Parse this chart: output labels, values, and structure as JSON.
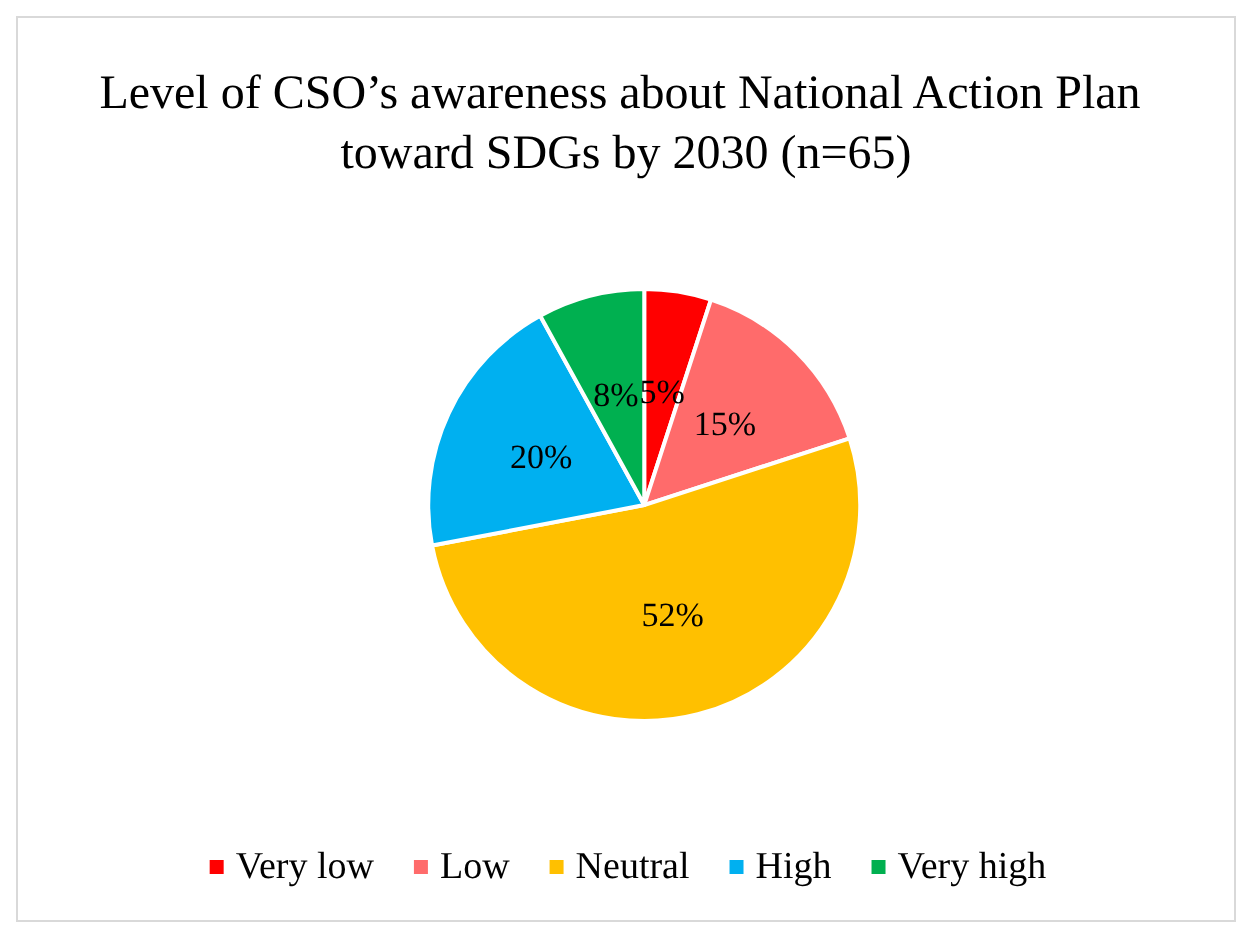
{
  "chart_data": {
    "type": "pie",
    "title": "Level of CSO’s awareness about National Action Plan toward SDGs by 2030 (n=65)",
    "categories": [
      "Very low",
      "Low",
      "Neutral",
      "High",
      "Very high"
    ],
    "values": [
      5,
      15,
      52,
      20,
      8
    ],
    "colors": [
      "#ff0000",
      "#ff6b6b",
      "#ffc000",
      "#00b0f0",
      "#00b050"
    ],
    "value_labels": [
      "5%",
      "15%",
      "52%",
      "20%",
      "8%"
    ],
    "legend": "bottom"
  }
}
